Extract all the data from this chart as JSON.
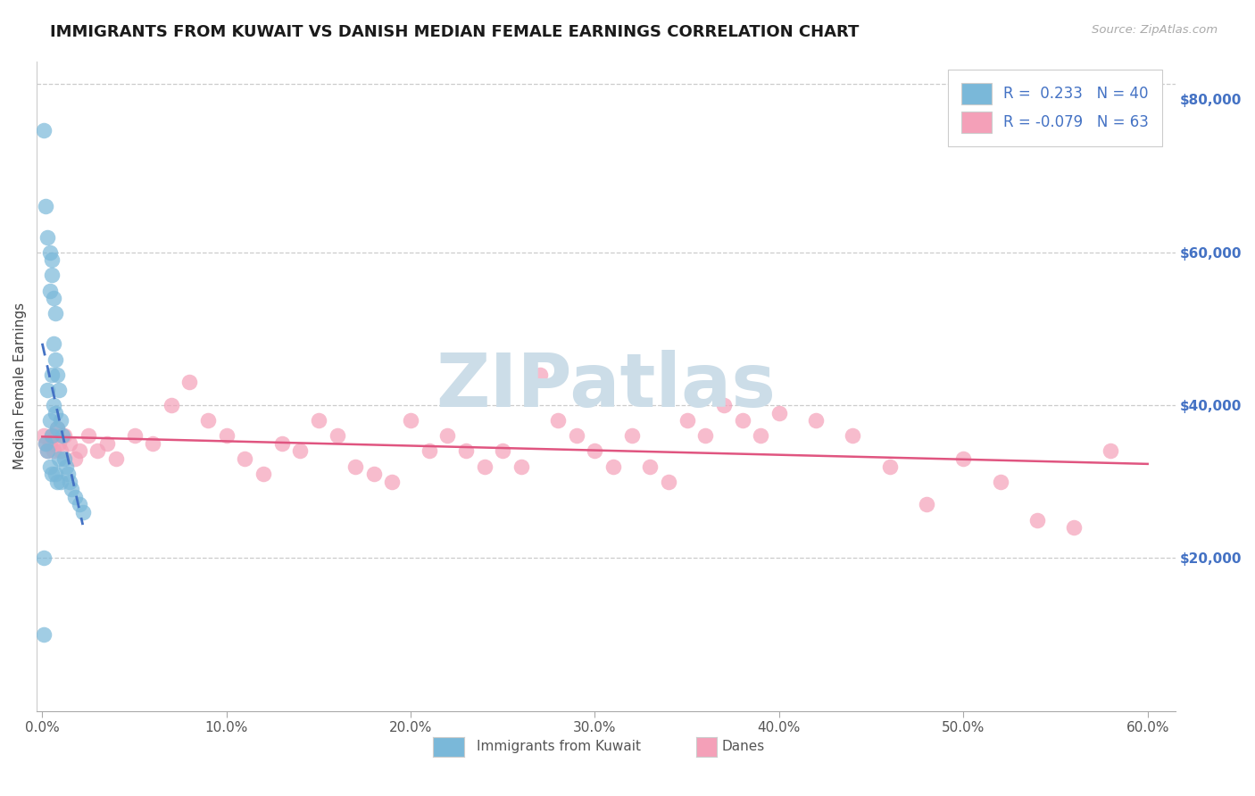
{
  "title": "IMMIGRANTS FROM KUWAIT VS DANISH MEDIAN FEMALE EARNINGS CORRELATION CHART",
  "source": "Source: ZipAtlas.com",
  "xlabel_blue": "Immigrants from Kuwait",
  "xlabel_pink": "Danes",
  "ylabel": "Median Female Earnings",
  "xlim": [
    -0.003,
    0.615
  ],
  "ylim": [
    0,
    85000
  ],
  "xticks": [
    0.0,
    0.1,
    0.2,
    0.3,
    0.4,
    0.5,
    0.6
  ],
  "xticklabels": [
    "0.0%",
    "10.0%",
    "20.0%",
    "30.0%",
    "40.0%",
    "50.0%",
    "60.0%"
  ],
  "R_blue": 0.233,
  "N_blue": 40,
  "R_pink": -0.079,
  "N_pink": 63,
  "blue_scatter_color": "#7ab8d9",
  "blue_line_color": "#4472c4",
  "pink_scatter_color": "#f4a0b8",
  "pink_line_color": "#e05580",
  "right_tick_color": "#4472c4",
  "legend_text_color": "#4472c4",
  "watermark_color": "#ccdde8",
  "grid_color": "#cccccc",
  "blue_x": [
    0.001,
    0.002,
    0.002,
    0.003,
    0.003,
    0.003,
    0.004,
    0.004,
    0.004,
    0.004,
    0.005,
    0.005,
    0.005,
    0.005,
    0.005,
    0.006,
    0.006,
    0.006,
    0.007,
    0.007,
    0.007,
    0.007,
    0.008,
    0.008,
    0.008,
    0.009,
    0.009,
    0.01,
    0.01,
    0.011,
    0.012,
    0.013,
    0.014,
    0.015,
    0.016,
    0.018,
    0.02,
    0.022,
    0.001,
    0.001
  ],
  "blue_y": [
    76000,
    66000,
    35000,
    62000,
    42000,
    34000,
    60000,
    55000,
    38000,
    32000,
    59000,
    57000,
    44000,
    36000,
    31000,
    54000,
    48000,
    40000,
    52000,
    46000,
    39000,
    31000,
    44000,
    37000,
    30000,
    42000,
    33000,
    38000,
    30000,
    36000,
    33000,
    32000,
    31000,
    30000,
    29000,
    28000,
    27000,
    26000,
    20000,
    10000
  ],
  "pink_x": [
    0.001,
    0.002,
    0.003,
    0.004,
    0.005,
    0.006,
    0.007,
    0.008,
    0.009,
    0.01,
    0.012,
    0.015,
    0.018,
    0.02,
    0.025,
    0.03,
    0.035,
    0.04,
    0.05,
    0.06,
    0.07,
    0.08,
    0.09,
    0.1,
    0.11,
    0.12,
    0.13,
    0.14,
    0.15,
    0.16,
    0.17,
    0.18,
    0.19,
    0.2,
    0.21,
    0.22,
    0.23,
    0.24,
    0.25,
    0.26,
    0.27,
    0.28,
    0.29,
    0.3,
    0.31,
    0.32,
    0.33,
    0.34,
    0.35,
    0.36,
    0.37,
    0.38,
    0.39,
    0.4,
    0.42,
    0.44,
    0.46,
    0.48,
    0.5,
    0.52,
    0.54,
    0.56,
    0.58
  ],
  "pink_y": [
    36000,
    35000,
    34000,
    35000,
    36000,
    34000,
    36000,
    37000,
    35000,
    34000,
    36000,
    35000,
    33000,
    34000,
    36000,
    34000,
    35000,
    33000,
    36000,
    35000,
    40000,
    43000,
    38000,
    36000,
    33000,
    31000,
    35000,
    34000,
    38000,
    36000,
    32000,
    31000,
    30000,
    38000,
    34000,
    36000,
    34000,
    32000,
    34000,
    32000,
    44000,
    38000,
    36000,
    34000,
    32000,
    36000,
    32000,
    30000,
    38000,
    36000,
    40000,
    38000,
    36000,
    39000,
    38000,
    36000,
    32000,
    27000,
    33000,
    30000,
    25000,
    24000,
    34000
  ]
}
